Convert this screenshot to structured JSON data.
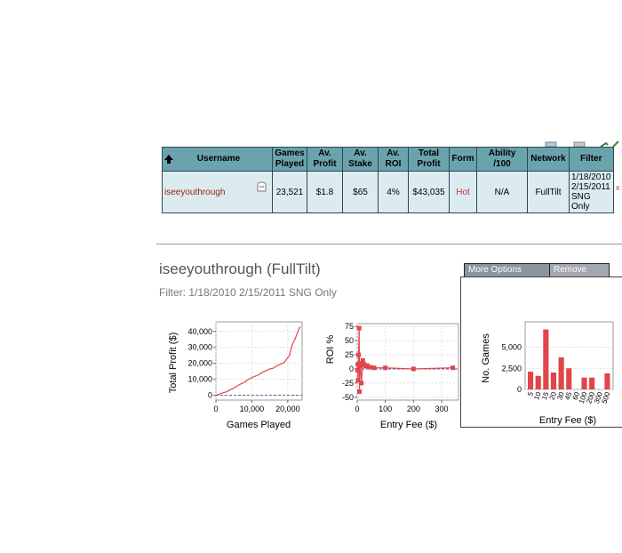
{
  "table": {
    "headers": {
      "username": "Username",
      "games_played": "Games Played",
      "av_profit": "Av. Profit",
      "av_stake": "Av. Stake",
      "av_roi": "Av. ROI",
      "total_profit": "Total Profit",
      "form": "Form",
      "ability": "Ability /100",
      "network": "Network",
      "filter": "Filter"
    },
    "row": {
      "username": "iseeyouthrough",
      "games_played": "23,521",
      "av_profit": "$1.8",
      "av_stake": "$65",
      "av_roi": "4%",
      "total_profit": "$43,035",
      "form": "Hot",
      "ability": "N/A",
      "network": "FullTilt",
      "filter_line1": "1/18/2010",
      "filter_line2": "2/15/2011",
      "filter_line3": "SNG Only",
      "cut_marker": "x"
    }
  },
  "profile": {
    "title": "iseeyouthrough (FullTilt)",
    "filter_text": "Filter: 1/18/2010 2/15/2011 SNG Only"
  },
  "tabs": {
    "more_options": "More Options",
    "remove": "Remove"
  },
  "colors": {
    "header_bg": "#6aa3ad",
    "row_bg": "#dcebef",
    "series": "#e0454a"
  },
  "chart_data": [
    {
      "type": "line",
      "xlabel": "Games Played",
      "ylabel": "Total Profit ($)",
      "xlim": [
        0,
        24000
      ],
      "ylim": [
        -3000,
        46000
      ],
      "x_ticks": [
        "0",
        "10,000",
        "20,000"
      ],
      "y_ticks": [
        "0",
        "10,000",
        "20,000",
        "30,000",
        "40,000"
      ],
      "grid": true,
      "series": [
        {
          "x": [
            0,
            1000,
            2000,
            3000,
            4000,
            5000,
            6000,
            7000,
            8000,
            9000,
            10000,
            11000,
            12000,
            13000,
            14000,
            15000,
            16000,
            17000,
            18000,
            19000,
            20000,
            20500,
            21000,
            21500,
            22000,
            22500,
            23000,
            23521
          ],
          "y": [
            0,
            800,
            1600,
            2200,
            3500,
            4500,
            6000,
            7200,
            8200,
            10000,
            11000,
            12000,
            13000,
            14500,
            15500,
            16500,
            17000,
            18500,
            19500,
            20500,
            23500,
            25000,
            30000,
            33000,
            35000,
            38000,
            41000,
            43035
          ]
        }
      ]
    },
    {
      "type": "line",
      "xlabel": "Entry Fee ($)",
      "ylabel": "ROI %",
      "xlim": [
        0,
        360
      ],
      "ylim": [
        -55,
        80
      ],
      "x_ticks": [
        "0",
        "100",
        "200",
        "300"
      ],
      "y_ticks": [
        "-50",
        "-25",
        "0",
        "25",
        "50",
        "75"
      ],
      "grid": true,
      "series": [
        {
          "x": [
            1,
            2,
            3,
            5,
            7,
            8,
            10,
            12,
            15,
            20,
            25,
            30,
            35,
            45,
            60,
            100,
            200,
            340
          ],
          "y": [
            -2,
            8,
            -20,
            25,
            72,
            -40,
            10,
            5,
            -25,
            15,
            8,
            5,
            6,
            3,
            2,
            2,
            0,
            2
          ]
        }
      ]
    },
    {
      "type": "bar",
      "xlabel": "Entry Fee ($)",
      "ylabel": "No. Games",
      "ylim": [
        0,
        8000
      ],
      "y_ticks": [
        "0",
        "2,500",
        "5,000"
      ],
      "grid": true,
      "categories": [
        "5",
        "10",
        "15",
        "20",
        "30",
        "45",
        "60",
        "100",
        "200",
        "300",
        "500"
      ],
      "values": [
        2100,
        1600,
        7100,
        2000,
        3800,
        2500,
        0,
        1400,
        1400,
        0,
        1900
      ]
    }
  ]
}
